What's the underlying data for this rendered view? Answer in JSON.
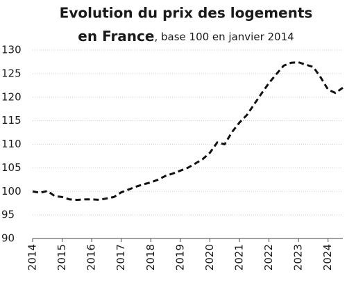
{
  "chart_data": {
    "type": "line",
    "title": [
      "Evolution du prix des logements",
      "en France"
    ],
    "subtitle": ", base 100 en janvier 2014",
    "x": [
      2014,
      2014.25,
      2014.5,
      2014.75,
      2015,
      2015.25,
      2015.5,
      2015.75,
      2016,
      2016.25,
      2016.5,
      2016.75,
      2017,
      2017.25,
      2017.5,
      2017.75,
      2018,
      2018.25,
      2018.5,
      2018.75,
      2019,
      2019.25,
      2019.5,
      2019.75,
      2020,
      2020.25,
      2020.5,
      2020.75,
      2021,
      2021.25,
      2021.5,
      2021.75,
      2022,
      2022.25,
      2022.5,
      2022.75,
      2023,
      2023.25,
      2023.5,
      2023.75,
      2024,
      2024.25,
      2024.5
    ],
    "values": [
      100.0,
      99.7,
      100.1,
      99.0,
      98.8,
      98.3,
      98.2,
      98.3,
      98.3,
      98.2,
      98.5,
      98.8,
      99.8,
      100.4,
      101.0,
      101.5,
      101.9,
      102.5,
      103.3,
      103.8,
      104.4,
      105.0,
      105.9,
      106.8,
      108.2,
      110.4,
      110.0,
      112.6,
      114.6,
      116.2,
      118.5,
      120.8,
      123.0,
      124.9,
      126.7,
      127.3,
      127.4,
      126.9,
      126.4,
      124.2,
      121.6,
      120.9,
      122.0
    ],
    "color": "#111111",
    "line_style": "dashed",
    "xlim": [
      2014,
      2024.5
    ],
    "xticks": [
      2014,
      2015,
      2016,
      2017,
      2018,
      2019,
      2020,
      2021,
      2022,
      2023,
      2024
    ],
    "ylim": [
      90,
      130
    ],
    "yticks": [
      90,
      95,
      100,
      105,
      110,
      115,
      120,
      125,
      130
    ],
    "grid": true
  }
}
